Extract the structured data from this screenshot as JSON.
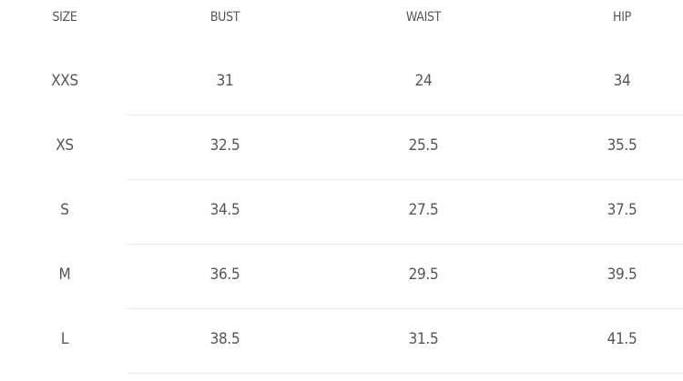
{
  "table": {
    "headers": [
      "SIZE",
      "BUST",
      "WAIST",
      "HIP"
    ],
    "rows": [
      [
        "XXS",
        "31",
        "24",
        "34"
      ],
      [
        "XS",
        "32.5",
        "25.5",
        "35.5"
      ],
      [
        "S",
        "34.5",
        "27.5",
        "37.5"
      ],
      [
        "M",
        "36.5",
        "29.5",
        "39.5"
      ],
      [
        "L",
        "38.5",
        "31.5",
        "41.5"
      ]
    ]
  }
}
